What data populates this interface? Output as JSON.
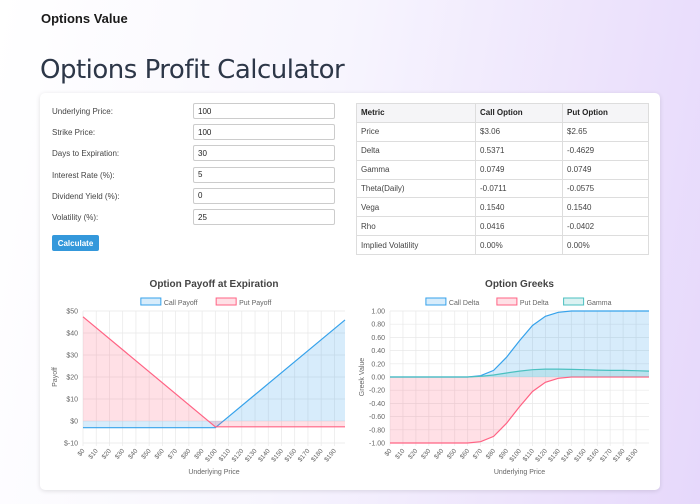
{
  "app": {
    "title": "Options Value"
  },
  "page": {
    "title": "Options Profit Calculator"
  },
  "form": {
    "fields": [
      {
        "label": "Underlying Price:",
        "value": "100"
      },
      {
        "label": "Strike Price:",
        "value": "100"
      },
      {
        "label": "Days to Expiration:",
        "value": "30"
      },
      {
        "label": "Interest Rate (%):",
        "value": "5"
      },
      {
        "label": "Dividend Yield (%):",
        "value": "0"
      },
      {
        "label": "Volatility (%):",
        "value": "25"
      }
    ],
    "calculate_label": "Calculate"
  },
  "results": {
    "headers": [
      "Metric",
      "Call Option",
      "Put Option"
    ],
    "rows": [
      [
        "Price",
        "$3.06",
        "$2.65"
      ],
      [
        "Delta",
        "0.5371",
        "-0.4629"
      ],
      [
        "Gamma",
        "0.0749",
        "0.0749"
      ],
      [
        "Theta(Daily)",
        "-0.0711",
        "-0.0575"
      ],
      [
        "Vega",
        "0.1540",
        "0.1540"
      ],
      [
        "Rho",
        "0.0416",
        "-0.0402"
      ],
      [
        "Implied Volatility",
        "0.00%",
        "0.00%"
      ]
    ]
  },
  "chart_data": [
    {
      "type": "area",
      "title": "Option Payoff at Expiration",
      "xlabel": "Underlying Price",
      "ylabel": "Payoff",
      "ylim": [
        -10,
        50
      ],
      "yticks": [
        "$-10",
        "$0",
        "$10",
        "$20",
        "$30",
        "$40",
        "$50"
      ],
      "xticks": [
        "$0",
        "$10",
        "$20",
        "$30",
        "$40",
        "$50",
        "$60",
        "$70",
        "$80",
        "$90",
        "$100",
        "$110",
        "$120",
        "$130",
        "$140",
        "$150",
        "$160",
        "$170",
        "$180",
        "$190"
      ],
      "xlim": [
        0,
        198
      ],
      "grid": true,
      "legend": "top",
      "x": [
        0,
        100,
        198
      ],
      "series": [
        {
          "name": "Call Payoff",
          "color": "#36a2eb",
          "values": [
            -3.06,
            -3.06,
            45.94
          ]
        },
        {
          "name": "Put Payoff",
          "color": "#ff6384",
          "values": [
            47.35,
            -2.65,
            -2.65
          ]
        }
      ]
    },
    {
      "type": "area",
      "title": "Option Greeks",
      "xlabel": "Underlying Price",
      "ylabel": "Greek Value",
      "ylim": [
        -1,
        1
      ],
      "yticks": [
        "-1.00",
        "-0.80",
        "-0.60",
        "-0.40",
        "-0.20",
        "0.00",
        "0.20",
        "0.40",
        "0.60",
        "0.80",
        "1.00"
      ],
      "xticks": [
        "$0",
        "$10",
        "$20",
        "$30",
        "$40",
        "$50",
        "$60",
        "$70",
        "$80",
        "$90",
        "$100",
        "$110",
        "$120",
        "$130",
        "$140",
        "$150",
        "$160",
        "$170",
        "$180",
        "$190"
      ],
      "xlim": [
        0,
        200
      ],
      "grid": true,
      "legend": "top",
      "x": [
        0,
        10,
        20,
        30,
        40,
        50,
        60,
        70,
        80,
        90,
        100,
        110,
        120,
        130,
        140,
        150,
        160,
        170,
        180,
        190,
        200
      ],
      "series": [
        {
          "name": "Call Delta",
          "color": "#36a2eb",
          "values": [
            0,
            0,
            0,
            0,
            0,
            0,
            0,
            0.02,
            0.1,
            0.3,
            0.55,
            0.78,
            0.92,
            0.98,
            1,
            1,
            1,
            1,
            1,
            1,
            1
          ]
        },
        {
          "name": "Put Delta",
          "color": "#ff6384",
          "values": [
            -1,
            -1,
            -1,
            -1,
            -1,
            -1,
            -1,
            -0.98,
            -0.9,
            -0.7,
            -0.45,
            -0.22,
            -0.08,
            -0.02,
            0,
            0,
            0,
            0,
            0,
            0,
            0
          ]
        },
        {
          "name": "Gamma",
          "color": "#4bc0c0",
          "values": [
            0,
            0,
            0,
            0,
            0,
            0,
            0,
            0.01,
            0.03,
            0.06,
            0.09,
            0.11,
            0.12,
            0.12,
            0.115,
            0.11,
            0.105,
            0.1,
            0.1,
            0.095,
            0.09
          ]
        }
      ]
    }
  ]
}
